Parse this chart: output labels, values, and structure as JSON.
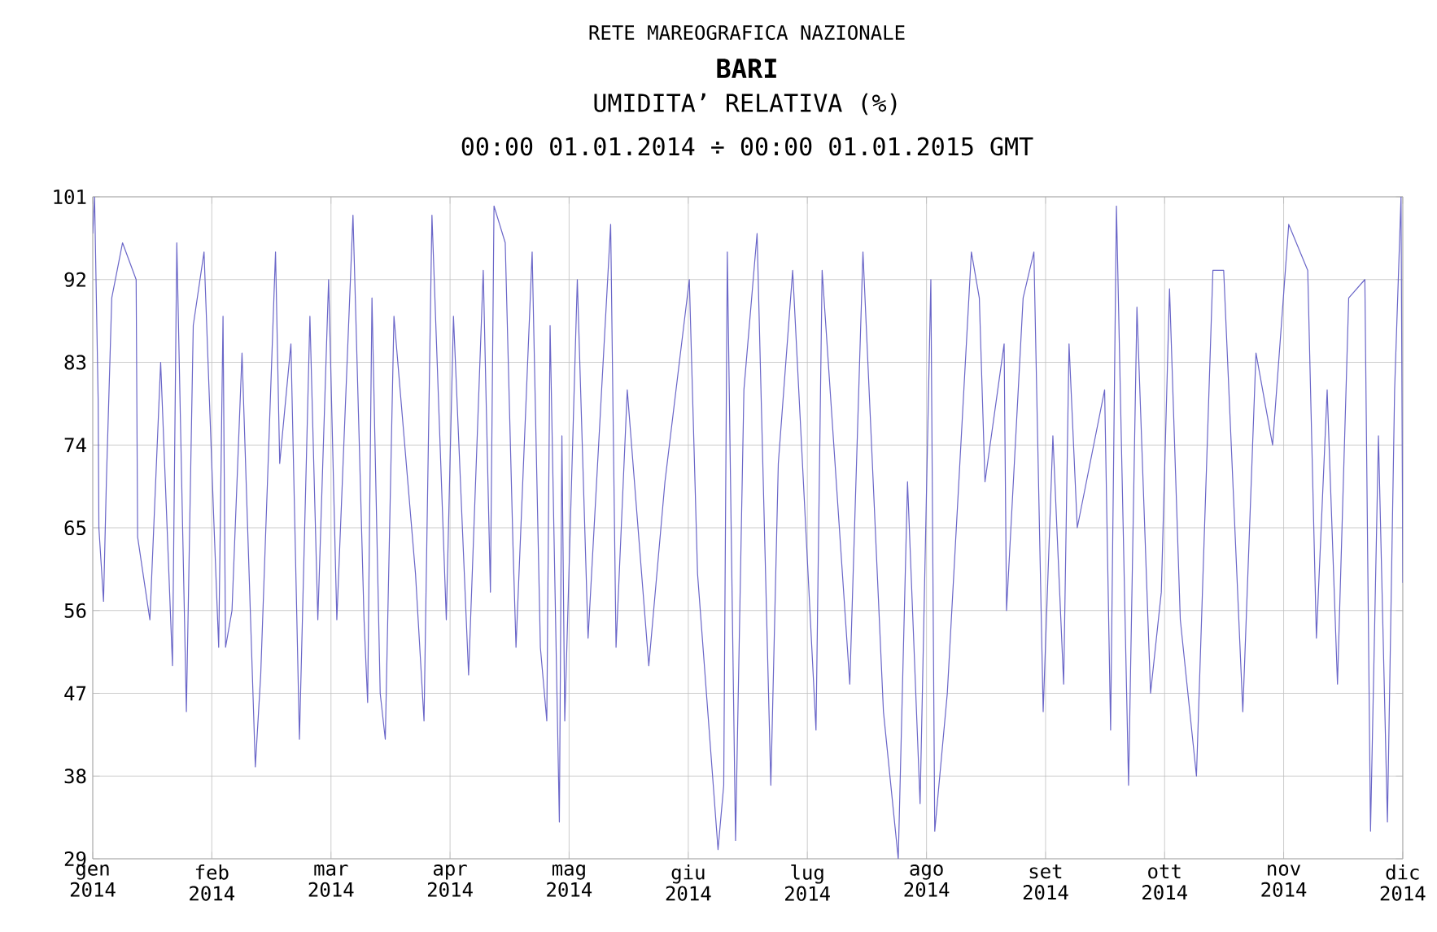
{
  "chart_data": {
    "type": "line",
    "title": "RETE MAREOGRAFICA NAZIONALE",
    "subtitle": "BARI",
    "annotations": [
      "UMIDITA’ RELATIVA (%)",
      "00:00 01.01.2014 ÷ 00:00 01.01.2015 GMT"
    ],
    "x": [
      "2014-01-01T00:00",
      "2014-01-01T12:00",
      "2014-01-02T12:00",
      "2014-01-02T17:00",
      "2014-01-04T00:00",
      "2014-01-04T19:00",
      "2014-01-06T07:00",
      "2014-01-09T07:00",
      "2014-01-13T02:00",
      "2014-01-13T12:00",
      "2014-01-16T22:00",
      "2014-01-19T22:00",
      "2014-01-23T05:00",
      "2014-01-24T10:00",
      "2014-01-27T02:00",
      "2014-01-29T00:00",
      "2014-02-01T00:00",
      "2014-02-03T17:00",
      "2014-02-05T02:00",
      "2014-02-06T07:00",
      "2014-02-07T00:00",
      "2014-02-08T19:00",
      "2014-02-11T14:00",
      "2014-02-15T07:00",
      "2014-02-16T19:00",
      "2014-02-20T22:00",
      "2014-02-22T02:00",
      "2014-02-25T05:00",
      "2014-02-27T14:00",
      "2014-03-02T12:00",
      "2014-03-04T17:00",
      "2014-03-07T17:00",
      "2014-03-10T00:00",
      "2014-03-14T12:00",
      "2014-03-15T07:00",
      "2014-03-17T14:00",
      "2014-03-18T14:00",
      "2014-03-19T19:00",
      "2014-03-22T02:00",
      "2014-03-23T12:00",
      "2014-03-25T22:00",
      "2014-03-31T22:00",
      "2014-04-03T07:00",
      "2014-04-05T12:00",
      "2014-04-09T12:00",
      "2014-04-11T12:00",
      "2014-04-15T17:00",
      "2014-04-19T19:00",
      "2014-04-21T19:00",
      "2014-04-22T19:00",
      "2014-04-25T22:00",
      "2014-04-28T02:00",
      "2014-04-28T22:00",
      "2014-05-03T10:00",
      "2014-05-05T17:00",
      "2014-05-07T12:00",
      "2014-05-08T10:00",
      "2014-05-11T00:00",
      "2014-05-11T17:00",
      "2014-05-12T12:00",
      "2014-05-16T00:00",
      "2014-05-19T00:00",
      "2014-05-25T07:00",
      "2014-05-26T19:00",
      "2014-05-29T22:00",
      "2014-06-04T22:00",
      "2014-06-09T10:00",
      "2014-06-16T05:00",
      "2014-06-18T12:00",
      "2014-06-24T05:00",
      "2014-06-25T19:00",
      "2014-06-26T19:00",
      "2014-06-29T02:00",
      "2014-07-01T10:00",
      "2014-07-05T02:00",
      "2014-07-08T22:00",
      "2014-07-11T00:00",
      "2014-07-15T00:00",
      "2014-07-21T12:00",
      "2014-07-23T05:00",
      "2014-07-30T22:00",
      "2014-08-03T14:00",
      "2014-08-09T07:00",
      "2014-08-13T10:00",
      "2014-08-16T00:00",
      "2014-08-19T12:00",
      "2014-08-22T12:00",
      "2014-08-23T14:00",
      "2014-08-27T02:00",
      "2014-09-02T19:00",
      "2014-09-05T00:00",
      "2014-09-06T14:00",
      "2014-09-11T22:00",
      "2014-09-12T14:00",
      "2014-09-17T05:00",
      "2014-09-20T05:00",
      "2014-09-22T19:00",
      "2014-09-25T12:00",
      "2014-09-28T12:00",
      "2014-09-30T00:00",
      "2014-10-02T07:00",
      "2014-10-09T22:00",
      "2014-10-11T14:00",
      "2014-10-13T05:00",
      "2014-10-16T14:00",
      "2014-10-18T22:00",
      "2014-10-22T17:00",
      "2014-10-25T17:00",
      "2014-10-28T00:00",
      "2014-10-31T00:00",
      "2014-11-04T12:00",
      "2014-11-09T02:00",
      "2014-11-12T02:00",
      "2014-11-17T10:00",
      "2014-11-21T02:00",
      "2014-11-25T17:00",
      "2014-11-30T05:00",
      "2014-12-05T12:00",
      "2014-12-07T22:00",
      "2014-12-10T22:00",
      "2014-12-13T19:00",
      "2014-12-16T22:00",
      "2014-12-21T10:00",
      "2014-12-23T00:00",
      "2014-12-25T05:00",
      "2014-12-27T17:00",
      "2014-12-29T17:00",
      "2014-12-31T12:00",
      "2015-01-01T00:00"
    ],
    "series": [
      {
        "color": "#6a66c8",
        "values": [
          97,
          101,
          79,
          65,
          57,
          70,
          90,
          96,
          92,
          64,
          55,
          83,
          50,
          96,
          45,
          87,
          95,
          66,
          52,
          88,
          52,
          56,
          84,
          39,
          49,
          95,
          72,
          85,
          42,
          88,
          55,
          92,
          55,
          99,
          88,
          55,
          46,
          90,
          47,
          42,
          88,
          60,
          44,
          99,
          55,
          88,
          49,
          93,
          58,
          100,
          96,
          63,
          52,
          95,
          52,
          44,
          87,
          33,
          75,
          44,
          92,
          53,
          98,
          52,
          80,
          50,
          70,
          92,
          60,
          30,
          37,
          95,
          31,
          80,
          97,
          37,
          72,
          93,
          43,
          93,
          48,
          95,
          45,
          29,
          70,
          35,
          92,
          32,
          47,
          95,
          90,
          70,
          85,
          56,
          90,
          95,
          45,
          75,
          48,
          85,
          65,
          80,
          43,
          100,
          37,
          89,
          47,
          58,
          91,
          55,
          38,
          93,
          93,
          45,
          84,
          74,
          98,
          93,
          53,
          80,
          48,
          90,
          92,
          32,
          75,
          33,
          80,
          101,
          59
        ]
      }
    ],
    "xlim": [
      "2014-01-01T00:00",
      "2015-01-01T00:00"
    ],
    "xticks": [
      {
        "value": "2014-01-01T00:00",
        "label": "gen 2014"
      },
      {
        "value": "2014-02-03T04:00",
        "label": "feb 2014"
      },
      {
        "value": "2014-03-08T09:00",
        "label": "mar 2014"
      },
      {
        "value": "2014-04-10T13:00",
        "label": "apr 2014"
      },
      {
        "value": "2014-05-13T17:00",
        "label": "mag 2014"
      },
      {
        "value": "2014-06-15T22:00",
        "label": "giu 2014"
      },
      {
        "value": "2014-07-19T02:00",
        "label": "lug 2014"
      },
      {
        "value": "2014-08-21T07:00",
        "label": "ago 2014"
      },
      {
        "value": "2014-09-23T11:00",
        "label": "set 2014"
      },
      {
        "value": "2014-10-26T15:00",
        "label": "ott 2014"
      },
      {
        "value": "2014-11-28T19:00",
        "label": "nov 2014"
      },
      {
        "value": "2014-12-31T23:00",
        "label": "dic 2014"
      }
    ],
    "ylim": [
      29,
      101
    ],
    "yticks": [
      29,
      38,
      47,
      56,
      65,
      74,
      83,
      92,
      101
    ],
    "grid": true,
    "marker": "none",
    "line_style": "solid"
  }
}
